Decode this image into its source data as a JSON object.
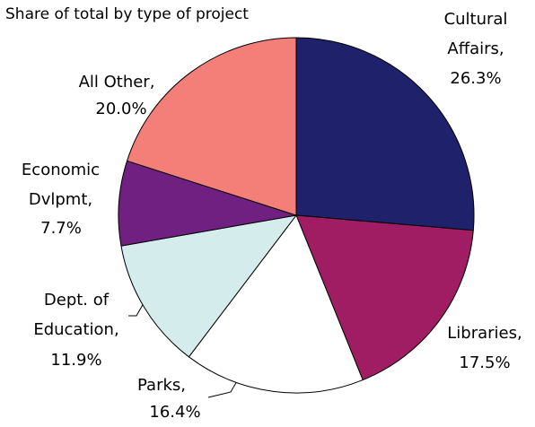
{
  "chart_data": {
    "type": "pie",
    "title": "Share of total by type of project",
    "categories": [
      "Cultural Affairs,",
      "Libraries,",
      "Parks,",
      "Dept. of Education,",
      "Economic Dvlpmt,",
      "All Other,"
    ],
    "values": [
      26.3,
      17.5,
      16.4,
      11.9,
      7.7,
      20.0
    ],
    "value_labels": [
      "26.3%",
      "17.5%",
      "16.4%",
      "11.9%",
      "7.7%",
      "20.0%"
    ],
    "colors": [
      "#1f216b",
      "#a01c63",
      "#ffffff",
      "#d4ecec",
      "#6f2080",
      "#f47f79"
    ]
  }
}
